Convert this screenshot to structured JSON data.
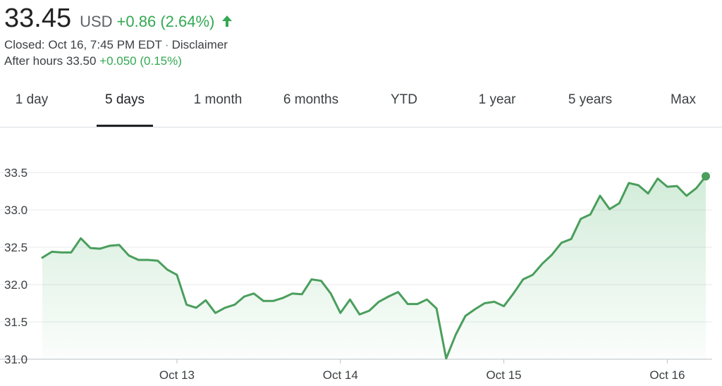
{
  "quote": {
    "price": "33.45",
    "currency": "USD",
    "change": "+0.86 (2.64%)",
    "change_icon": "up-arrow-icon",
    "closed_label": "Closed: Oct 16, 7:45 PM EDT",
    "separator": "·",
    "disclaimer": "Disclaimer",
    "after_hours_label": "After hours 33.50",
    "after_hours_change": "+0.050 (0.15%)"
  },
  "colors": {
    "positive": "#34a853",
    "line": "#4a9e5c",
    "grid": "#e8eaed",
    "text": "#202124"
  },
  "tabs": [
    {
      "label": "1 day",
      "active": false
    },
    {
      "label": "5 days",
      "active": true
    },
    {
      "label": "1 month",
      "active": false
    },
    {
      "label": "6 months",
      "active": false
    },
    {
      "label": "YTD",
      "active": false
    },
    {
      "label": "1 year",
      "active": false
    },
    {
      "label": "5 years",
      "active": false
    },
    {
      "label": "Max",
      "active": false
    }
  ],
  "chart_data": {
    "type": "area",
    "ylim": [
      31.0,
      33.5
    ],
    "y_ticks": [
      "33.5",
      "33.0",
      "32.5",
      "32.0",
      "31.5",
      "31.0"
    ],
    "x_tick_labels": [
      "Oct 13",
      "Oct 14",
      "Oct 15",
      "Oct 16"
    ],
    "x_tick_index": [
      14,
      31,
      48,
      65
    ],
    "grid": true,
    "series": [
      {
        "values": [
          32.36,
          32.44,
          32.43,
          32.43,
          32.62,
          32.49,
          32.48,
          32.52,
          32.53,
          32.39,
          32.33,
          32.33,
          32.32,
          32.2,
          32.13,
          31.73,
          31.69,
          31.79,
          31.62,
          31.69,
          31.73,
          31.84,
          31.88,
          31.78,
          31.78,
          31.82,
          31.88,
          31.87,
          32.07,
          32.05,
          31.88,
          31.62,
          31.8,
          31.6,
          31.65,
          31.77,
          31.84,
          31.9,
          31.74,
          31.74,
          31.8,
          31.68,
          31.01,
          31.33,
          31.58,
          31.67,
          31.75,
          31.77,
          31.71,
          31.88,
          32.07,
          32.13,
          32.28,
          32.4,
          32.56,
          32.61,
          32.88,
          32.94,
          33.19,
          33.01,
          33.09,
          33.36,
          33.33,
          33.22,
          33.42,
          33.31,
          33.32,
          33.19,
          33.29,
          33.45
        ]
      }
    ]
  }
}
